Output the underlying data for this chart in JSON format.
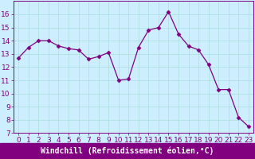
{
  "x": [
    0,
    1,
    2,
    3,
    4,
    5,
    6,
    7,
    8,
    9,
    10,
    11,
    12,
    13,
    14,
    15,
    16,
    17,
    18,
    19,
    20,
    21,
    22,
    23
  ],
  "y": [
    12.7,
    13.5,
    14.0,
    14.0,
    13.6,
    13.4,
    13.3,
    12.6,
    12.8,
    13.1,
    11.0,
    11.1,
    13.5,
    14.8,
    15.0,
    16.2,
    14.5,
    13.6,
    13.3,
    12.2,
    10.3,
    10.3,
    8.2,
    7.5
  ],
  "line_color": "#800080",
  "marker": "D",
  "marker_size": 2.5,
  "bg_color": "#cceeff",
  "grid_color": "#aadddd",
  "xlabel": "Windchill (Refroidissement éolien,°C)",
  "xlabel_color": "#ffffff",
  "xlabel_bg": "#800080",
  "ylim": [
    7,
    17
  ],
  "xlim": [
    -0.5,
    23.5
  ],
  "yticks": [
    7,
    8,
    9,
    10,
    11,
    12,
    13,
    14,
    15,
    16
  ],
  "xticks": [
    0,
    1,
    2,
    3,
    4,
    5,
    6,
    7,
    8,
    9,
    10,
    11,
    12,
    13,
    14,
    15,
    16,
    17,
    18,
    19,
    20,
    21,
    22,
    23
  ],
  "tick_label_fontsize": 6.5,
  "xlabel_fontsize": 7
}
